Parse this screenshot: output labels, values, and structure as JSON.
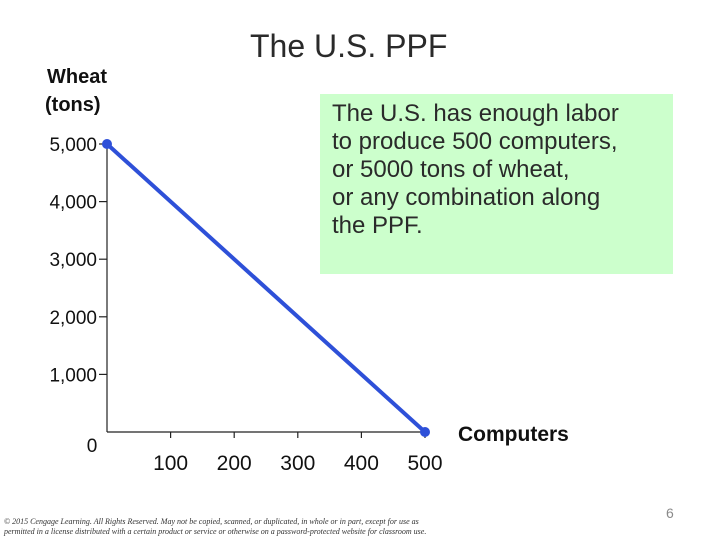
{
  "slide": {
    "title": "The U.S. PPF",
    "callout_lines": [
      "The U.S. has enough labor",
      "to produce 500 computers,",
      "or 5000 tons of wheat,",
      "or any combination along",
      "the PPF."
    ],
    "callout_color": "#ccffcc",
    "copyright_lines": [
      "© 2015 Cengage Learning. All Rights Reserved. May not be copied, scanned, or duplicated, in whole or in part, except for use as",
      "permitted in a license distributed with a certain product or service or otherwise on a password-protected website for classroom use."
    ],
    "slide_number": "6"
  },
  "chart_data": {
    "type": "line",
    "title": "The U.S. PPF",
    "ylabel_lines": [
      "Wheat",
      "(tons)"
    ],
    "xlabel": "Computers",
    "xlim": [
      0,
      500
    ],
    "ylim": [
      0,
      5000
    ],
    "x_ticks": [
      100,
      200,
      300,
      400,
      500
    ],
    "x_tick_labels": [
      "100",
      "200",
      "300",
      "400",
      "500"
    ],
    "y_ticks": [
      1000,
      2000,
      3000,
      4000,
      5000
    ],
    "y_tick_labels": [
      "1,000",
      "2,000",
      "3,000",
      "4,000",
      "5,000"
    ],
    "origin_label": "0",
    "grid": false,
    "line_color": "#2e50d8",
    "series": [
      {
        "x": [
          0,
          500
        ],
        "y": [
          5000,
          0
        ]
      }
    ]
  }
}
